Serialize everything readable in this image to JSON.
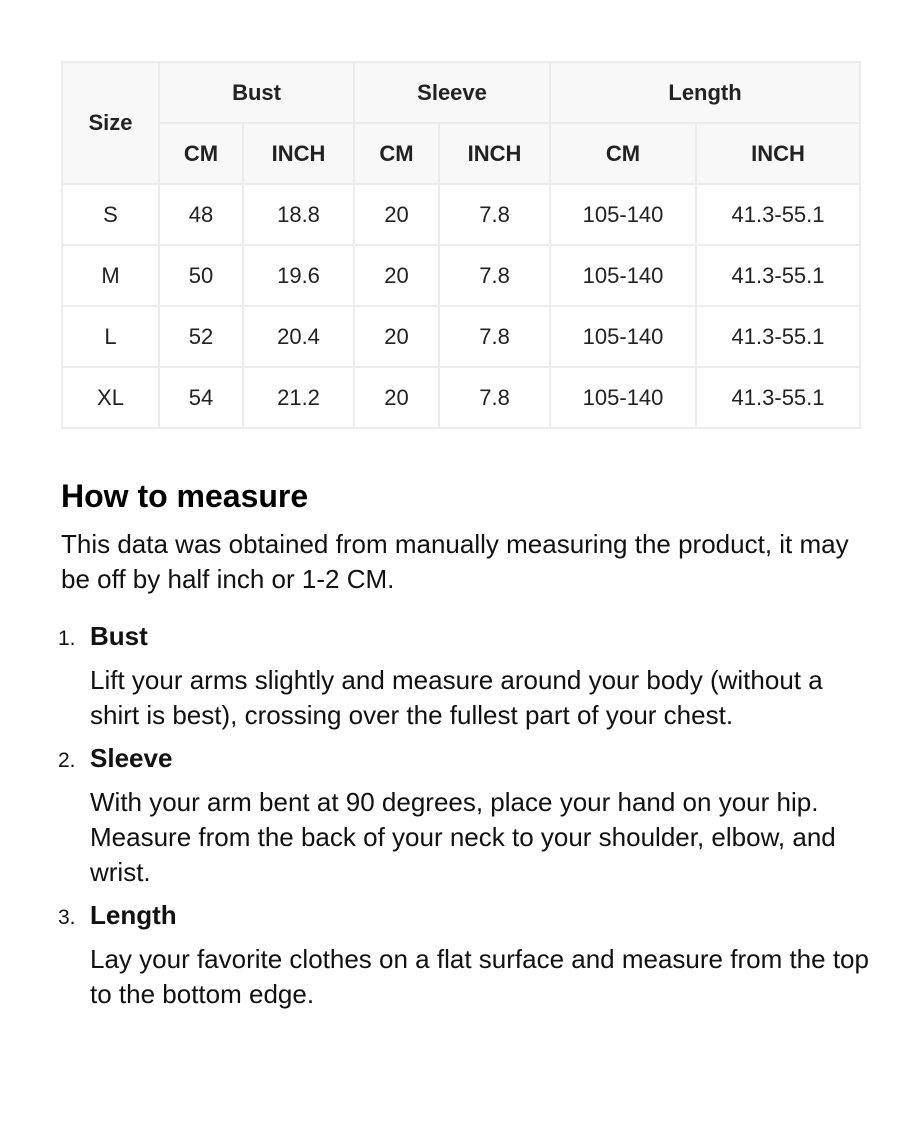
{
  "table": {
    "size_header": "Size",
    "groups": [
      "Bust",
      "Sleeve",
      "Length"
    ],
    "units": [
      "CM",
      "INCH",
      "CM",
      "INCH",
      "CM",
      "INCH"
    ],
    "rows": [
      [
        "S",
        "48",
        "18.8",
        "20",
        "7.8",
        "105-140",
        "41.3-55.1"
      ],
      [
        "M",
        "50",
        "19.6",
        "20",
        "7.8",
        "105-140",
        "41.3-55.1"
      ],
      [
        "L",
        "52",
        "20.4",
        "20",
        "7.8",
        "105-140",
        "41.3-55.1"
      ],
      [
        "XL",
        "54",
        "21.2",
        "20",
        "7.8",
        "105-140",
        "41.3-55.1"
      ]
    ]
  },
  "measure": {
    "title": "How to measure",
    "intro": "This data was obtained from manually measuring the product, it may be off by half inch or 1-2 CM.",
    "items": [
      {
        "num": "1.",
        "title": "Bust",
        "text": "Lift your arms slightly and measure around your body (without a shirt is best), crossing over the fullest part of your chest."
      },
      {
        "num": "2.",
        "title": "Sleeve",
        "text": "With your arm bent at 90 degrees, place your hand on your hip. Measure from the back of your neck to your shoulder, elbow, and wrist."
      },
      {
        "num": "3.",
        "title": "Length",
        "text": "Lay your favorite clothes on a flat surface and measure from the top to the bottom edge."
      }
    ]
  }
}
